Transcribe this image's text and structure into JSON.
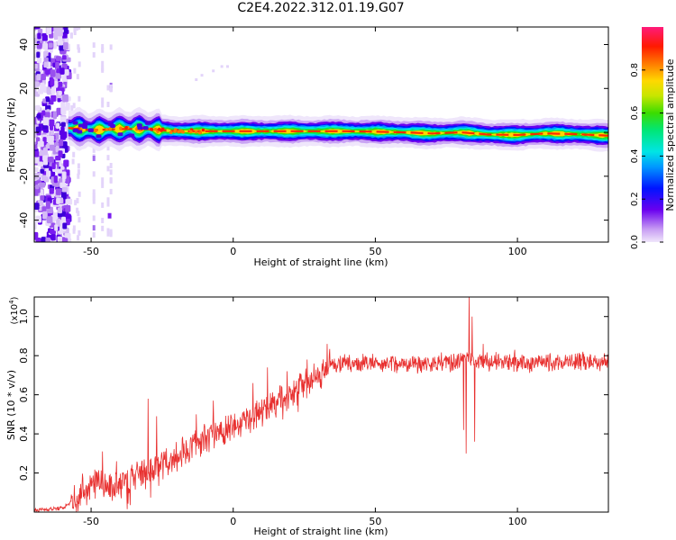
{
  "figure": {
    "title": "C2E4.2022.312.01.19.G07"
  },
  "chart_data": [
    {
      "type": "heatmap",
      "title": "",
      "xlabel": "Height of straight line (km)",
      "ylabel": "Frequency (Hz)",
      "xlim": [
        -70,
        132
      ],
      "ylim": [
        -50,
        48
      ],
      "xticks": [
        -50,
        0,
        50,
        100
      ],
      "yticks": [
        -40,
        -20,
        0,
        20,
        40
      ],
      "grid": false,
      "colorbar": {
        "label": "Normalized spectral amplitude",
        "range": [
          0,
          1
        ],
        "ticks": [
          0.0,
          0.2,
          0.4,
          0.6,
          0.8
        ],
        "tick_labels": [
          "0.0",
          "0.2",
          "0.4",
          "0.6",
          "0.8"
        ],
        "colormap": "rainbow"
      },
      "ridge": {
        "x": [
          -58,
          -50,
          -40,
          -30,
          -20,
          -10,
          0,
          10,
          20,
          30,
          40,
          50,
          60,
          70,
          80,
          90,
          100,
          110,
          120,
          132
        ],
        "freq": [
          2,
          1,
          1.5,
          1.5,
          0.5,
          0.5,
          0.5,
          0.5,
          0.5,
          0.5,
          0.5,
          0.3,
          0,
          -0.5,
          0,
          -1,
          -1.2,
          -0.5,
          -0.8,
          -1.5
        ]
      },
      "noise_region": {
        "x_from": -70,
        "x_to": -58
      }
    },
    {
      "type": "line",
      "title": "",
      "xlabel": "Height of straight line (km)",
      "ylabel": "SNR (10 * v/v)",
      "y_scale_label": "(x10",
      "y_scale_exp": "4",
      "y_scale_close": ")",
      "xlim": [
        -70,
        132
      ],
      "ylim": [
        0,
        1.1
      ],
      "xticks": [
        -50,
        0,
        50,
        100
      ],
      "yticks": [
        0.2,
        0.4,
        0.6,
        0.8,
        1.0
      ],
      "grid": false,
      "series": [
        {
          "color": "#e8302f",
          "trend": {
            "x": [
              -70,
              -60,
              -57,
              -52,
              -48,
              -40,
              -30,
              -20,
              -10,
              0,
              10,
              20,
              30,
              34,
              40,
              50,
              60,
              70,
              80,
              83,
              85,
              90,
              100,
              110,
              120,
              132
            ],
            "y": [
              0.01,
              0.02,
              0.05,
              0.12,
              0.15,
              0.14,
              0.2,
              0.28,
              0.38,
              0.44,
              0.52,
              0.61,
              0.7,
              0.76,
              0.76,
              0.76,
              0.76,
              0.76,
              0.77,
              0.8,
              0.77,
              0.77,
              0.76,
              0.76,
              0.77,
              0.77
            ]
          },
          "spikes": [
            {
              "x": -46,
              "y": 0.31
            },
            {
              "x": -41,
              "y": 0.26
            },
            {
              "x": -30,
              "y": 0.58
            },
            {
              "x": -27,
              "y": 0.49
            },
            {
              "x": -13,
              "y": 0.5
            },
            {
              "x": -7,
              "y": 0.57
            },
            {
              "x": 7,
              "y": 0.66
            },
            {
              "x": 12,
              "y": 0.74
            },
            {
              "x": 19,
              "y": 0.72
            },
            {
              "x": 26,
              "y": 0.78
            },
            {
              "x": 33,
              "y": 0.86
            },
            {
              "x": 81,
              "y": 0.93
            },
            {
              "x": 82,
              "y": 1.02
            },
            {
              "x": 83,
              "y": 1.1
            },
            {
              "x": 84,
              "y": 1.0
            },
            {
              "x": 88,
              "y": 0.86
            },
            {
              "x": 99,
              "y": 0.83
            },
            {
              "x": 123,
              "y": 0.82
            }
          ],
          "dips": [
            {
              "x": 81,
              "y": 0.42
            },
            {
              "x": 82,
              "y": 0.3
            },
            {
              "x": 85,
              "y": 0.36
            }
          ]
        }
      ]
    }
  ]
}
